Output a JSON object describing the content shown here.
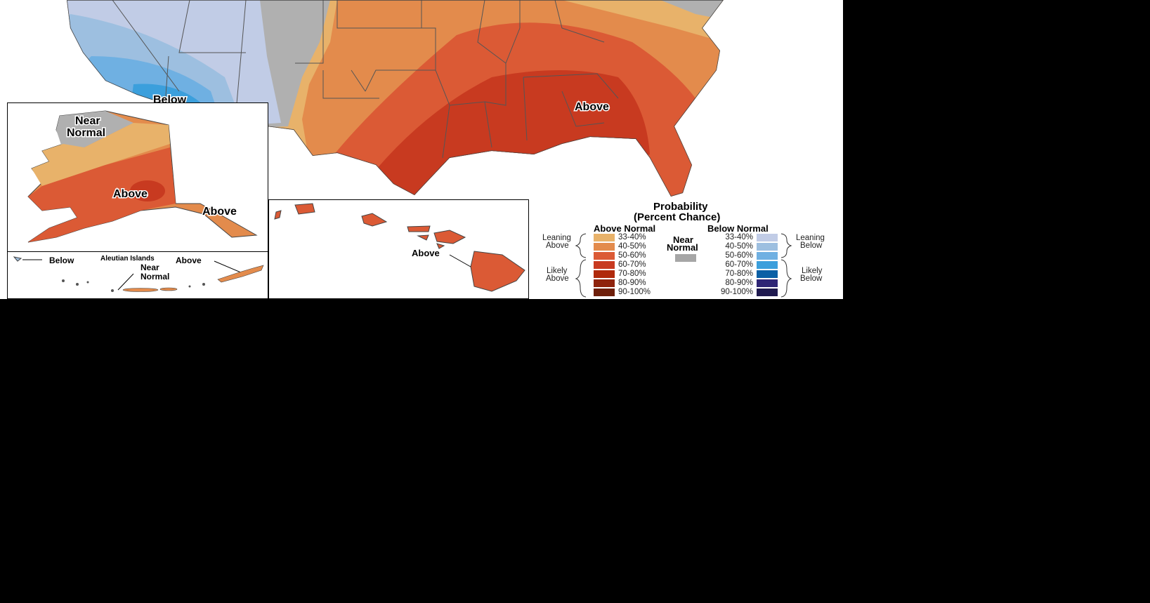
{
  "map_labels": {
    "conus_below": "Below",
    "conus_above": "Above",
    "alaska_near_normal_1": "Near",
    "alaska_near_normal_2": "Normal",
    "alaska_above": "Above",
    "panhandle_above": "Above",
    "aleutian_title": "Aleutian Islands",
    "aleutian_below": "Below",
    "aleutian_above": "Above",
    "aleutian_near_1": "Near",
    "aleutian_near_2": "Normal",
    "hawaii_above": "Above"
  },
  "legend": {
    "title_1": "Probability",
    "title_2": "(Percent Chance)",
    "above_header": "Above Normal",
    "below_header": "Below Normal",
    "near_1": "Near",
    "near_2": "Normal",
    "near_color": "#a6a6a6",
    "leaning_above_1": "Leaning",
    "leaning_above_2": "Above",
    "likely_above_1": "Likely",
    "likely_above_2": "Above",
    "leaning_below_1": "Leaning",
    "leaning_below_2": "Below",
    "likely_below_1": "Likely",
    "likely_below_2": "Below",
    "above": [
      {
        "label": "33-40%",
        "color": "#e8b26a"
      },
      {
        "label": "40-50%",
        "color": "#e38b4c"
      },
      {
        "label": "50-60%",
        "color": "#db5a35"
      },
      {
        "label": "60-70%",
        "color": "#c83a20"
      },
      {
        "label": "70-80%",
        "color": "#b02a0c"
      },
      {
        "label": "80-90%",
        "color": "#8f230c"
      },
      {
        "label": "90-100%",
        "color": "#6e1f0a"
      }
    ],
    "below": [
      {
        "label": "33-40%",
        "color": "#c1cce6"
      },
      {
        "label": "40-50%",
        "color": "#9dbfe0"
      },
      {
        "label": "50-60%",
        "color": "#6fb0e2"
      },
      {
        "label": "60-70%",
        "color": "#3b9fdc"
      },
      {
        "label": "70-80%",
        "color": "#0a5fa5"
      },
      {
        "label": "80-90%",
        "color": "#2e2575"
      },
      {
        "label": "90-100%",
        "color": "#1f1a4f"
      }
    ]
  }
}
